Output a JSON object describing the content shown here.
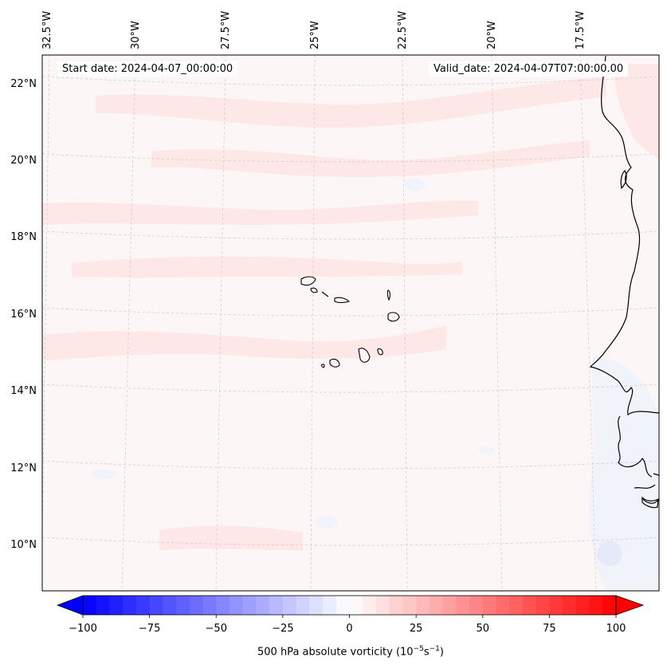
{
  "map": {
    "start_date": "Start date: 2024-04-07_00:00:00",
    "valid_date": "Valid_date: 2024-04-07T07:00:00.00",
    "lon_labels": [
      "32.5°W",
      "30°W",
      "27.5°W",
      "25°W",
      "22.5°W",
      "20°W",
      "17.5°W"
    ],
    "lat_labels": [
      "22°N",
      "20°N",
      "18°N",
      "16°N",
      "14°N",
      "12°N",
      "10°N"
    ],
    "field": "500 hPa absolute vorticity",
    "colors": {
      "background": "#fdf5f5",
      "positive_band": "#fde6e6",
      "negative_patch": "#f2f4fb",
      "coast": "#000000",
      "grid": "#c8c8c8"
    }
  },
  "colorbar": {
    "label_main": "500 hPa absolute vorticity (10",
    "label_exp1": "−5",
    "label_mid": "s",
    "label_exp2": "−1",
    "label_end": ")",
    "ticks": [
      "−100",
      "−75",
      "−50",
      "−25",
      "0",
      "25",
      "50",
      "75",
      "100"
    ],
    "min": -100,
    "max": 100,
    "n_levels": 40,
    "colors": {
      "min": "#0000ff",
      "mid": "#ffffff",
      "max": "#ff0000"
    }
  }
}
